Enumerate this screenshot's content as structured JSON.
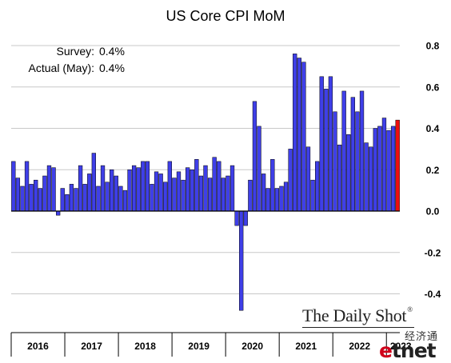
{
  "chart_data": {
    "type": "bar",
    "title": "US Core CPI MoM",
    "annotations": [
      {
        "label": "Survey:",
        "value": "0.4%"
      },
      {
        "label": "Actual (May):",
        "value": "0.4%"
      }
    ],
    "ylim": [
      -0.5,
      0.8
    ],
    "yticks": [
      0.8,
      0.6,
      0.4,
      0.2,
      0.0,
      -0.2,
      -0.4
    ],
    "ytick_labels": [
      "0.8",
      "0.6",
      "0.4",
      "0.2",
      "0.0",
      "-0.2",
      "-0.4"
    ],
    "year_labels": [
      "2016",
      "2017",
      "2018",
      "2019",
      "2020",
      "2021",
      "2022",
      "2023"
    ],
    "series": [
      {
        "values": [
          0.24,
          0.16,
          0.12,
          0.24,
          0.13,
          0.15,
          0.11,
          0.17,
          0.22,
          0.21,
          -0.02,
          0.11,
          0.08,
          0.13,
          0.11,
          0.22,
          0.13,
          0.18,
          0.28,
          0.12,
          0.22,
          0.14,
          0.2,
          0.17,
          0.12,
          0.1,
          0.2,
          0.22,
          0.21,
          0.24,
          0.24,
          0.13,
          0.19,
          0.18,
          0.14,
          0.24,
          0.16,
          0.19,
          0.15,
          0.21,
          0.2,
          0.25,
          0.17,
          0.22,
          0.16,
          0.26,
          0.24,
          0.16,
          0.17,
          0.22,
          -0.07,
          -0.48,
          -0.07,
          0.15,
          0.53,
          0.41,
          0.18,
          0.11,
          0.25,
          0.11,
          0.12,
          0.14,
          0.3,
          0.76,
          0.74,
          0.72,
          0.31,
          0.15,
          0.24,
          0.65,
          0.59,
          0.65,
          0.48,
          0.32,
          0.58,
          0.37,
          0.55,
          0.48,
          0.58,
          0.33,
          0.31,
          0.4,
          0.41,
          0.45,
          0.39,
          0.41,
          0.44
        ],
        "highlight_last": true
      }
    ],
    "colors": {
      "bar": "#3f3fe8",
      "highlight": "#ee0e0e",
      "grid": "#c8c8c8",
      "axis": "#000000"
    }
  },
  "brand": {
    "name": "The Daily Shot",
    "mark": "®"
  },
  "watermark": {
    "line1": "经济通",
    "line2_e": "e",
    "line2_rest": "tnet"
  }
}
